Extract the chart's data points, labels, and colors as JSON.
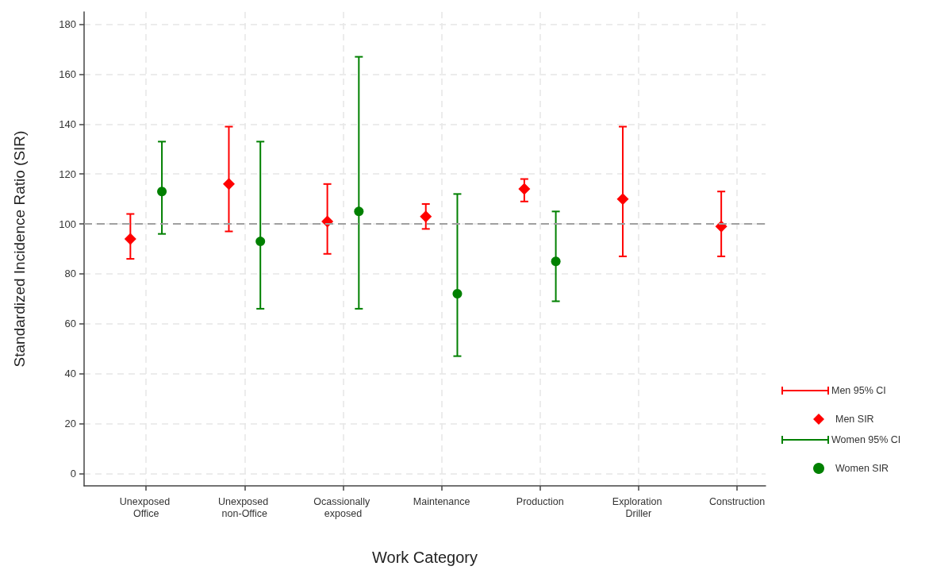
{
  "chart_data": {
    "type": "scatter",
    "xlabel": "Work Category",
    "ylabel": "Standardized Incidence Ratio (SIR)",
    "categories": [
      "Unexposed Office",
      "Unexposed non-Office",
      "Ocassionally exposed",
      "Maintenance",
      "Production",
      "Exploration Driller",
      "Construction"
    ],
    "series": [
      {
        "name": "Men SIR",
        "color": "#ff0000",
        "marker": "diamond",
        "values": [
          94,
          116,
          101,
          103,
          114,
          110,
          99
        ],
        "errors": [
          [
            86,
            104
          ],
          [
            97,
            139
          ],
          [
            88,
            116
          ],
          [
            98,
            108
          ],
          [
            109,
            118
          ],
          [
            87,
            139
          ],
          [
            87,
            113
          ]
        ]
      },
      {
        "name": "Women SIR",
        "color": "#008000",
        "marker": "circle",
        "values": [
          113,
          93,
          105,
          72,
          85,
          null,
          null
        ],
        "errors": [
          [
            96,
            133
          ],
          [
            66,
            133
          ],
          [
            66,
            167
          ],
          [
            47,
            112
          ],
          [
            69,
            105
          ],
          null,
          null
        ]
      }
    ],
    "annotations": [
      "Men 95% CI",
      "Women 95% CI"
    ],
    "ylim": [
      -5,
      185
    ],
    "yticks": [
      0,
      20,
      40,
      60,
      80,
      100,
      120,
      140,
      160,
      180
    ],
    "grid": true,
    "legend": "right",
    "ref_lines": [
      {
        "axis": "y",
        "value": 100,
        "color": "#a0a0a0",
        "line_style": "dashed"
      }
    ]
  }
}
